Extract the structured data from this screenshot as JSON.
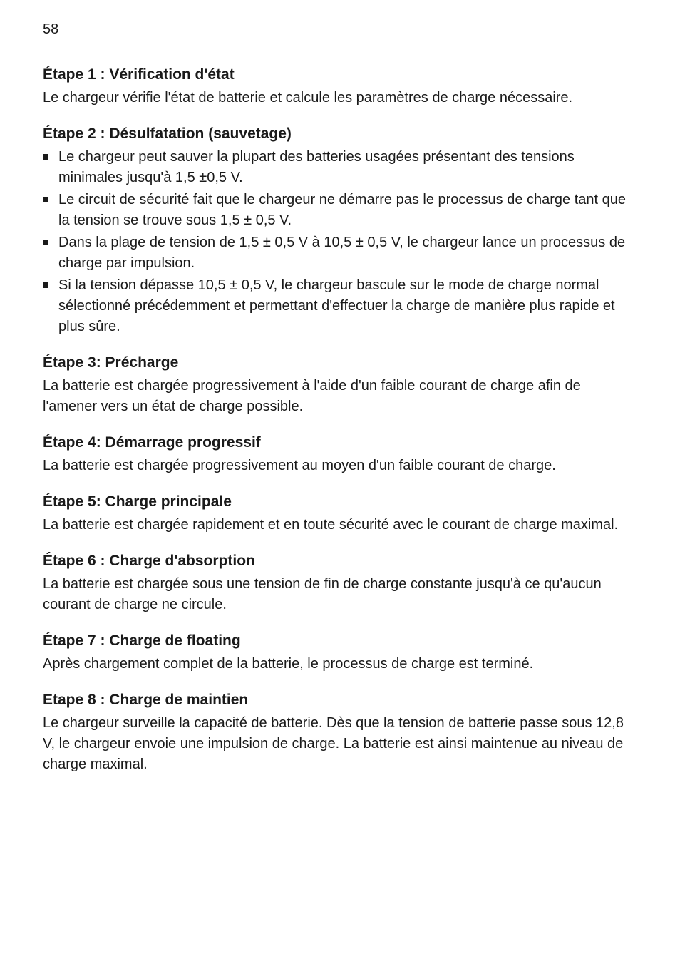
{
  "page_number": "58",
  "sections": {
    "etape1": {
      "heading": "Étape 1 : Vérification d'état",
      "text": "Le chargeur vérifie l'état de batterie et calcule les paramètres de charge nécessaire."
    },
    "etape2": {
      "heading": "Étape 2 : Désulfatation (sauvetage)",
      "bullets": {
        "b1": "Le chargeur peut sauver la plupart des batteries usagées présentant des tensions minimales jusqu'à 1,5 ±0,5 V.",
        "b2": "Le circuit de sécurité fait que le chargeur ne démarre pas le processus de charge tant que la tension se trouve sous 1,5 ± 0,5 V.",
        "b3": "Dans la plage de tension de 1,5 ± 0,5 V à 10,5 ± 0,5 V, le chargeur lance un processus de charge par impulsion.",
        "b4": "Si la tension dépasse 10,5 ± 0,5 V, le chargeur bascule sur le mode de charge normal sélectionné précédemment et permettant d'effectuer la charge de manière plus rapide et plus sûre."
      }
    },
    "etape3": {
      "heading": "Étape 3: Précharge",
      "text": "La batterie est chargée progressivement à l'aide d'un faible courant de charge afin de l'amener vers un état de charge possible."
    },
    "etape4": {
      "heading": "Étape 4: Démarrage progressif",
      "text": "La batterie est chargée progressivement au moyen d'un faible courant de charge."
    },
    "etape5": {
      "heading": "Étape 5: Charge principale",
      "text": "La batterie est chargée rapidement et en toute sécurité avec le courant de charge maximal."
    },
    "etape6": {
      "heading": "Étape 6 : Charge d'absorption",
      "text": "La batterie est chargée sous une tension de fin de charge constante jusqu'à ce qu'aucun courant de charge ne circule."
    },
    "etape7": {
      "heading": "Étape 7 : Charge de floating",
      "text": "Après chargement complet de la batterie, le processus de charge est terminé."
    },
    "etape8": {
      "heading": "Etape 8 : Charge de maintien",
      "text": "Le chargeur surveille la capacité de batterie. Dès que la tension de batterie passe sous 12,8 V, le chargeur envoie une impulsion de charge. La batterie est ainsi maintenue au niveau de charge maximal."
    }
  }
}
